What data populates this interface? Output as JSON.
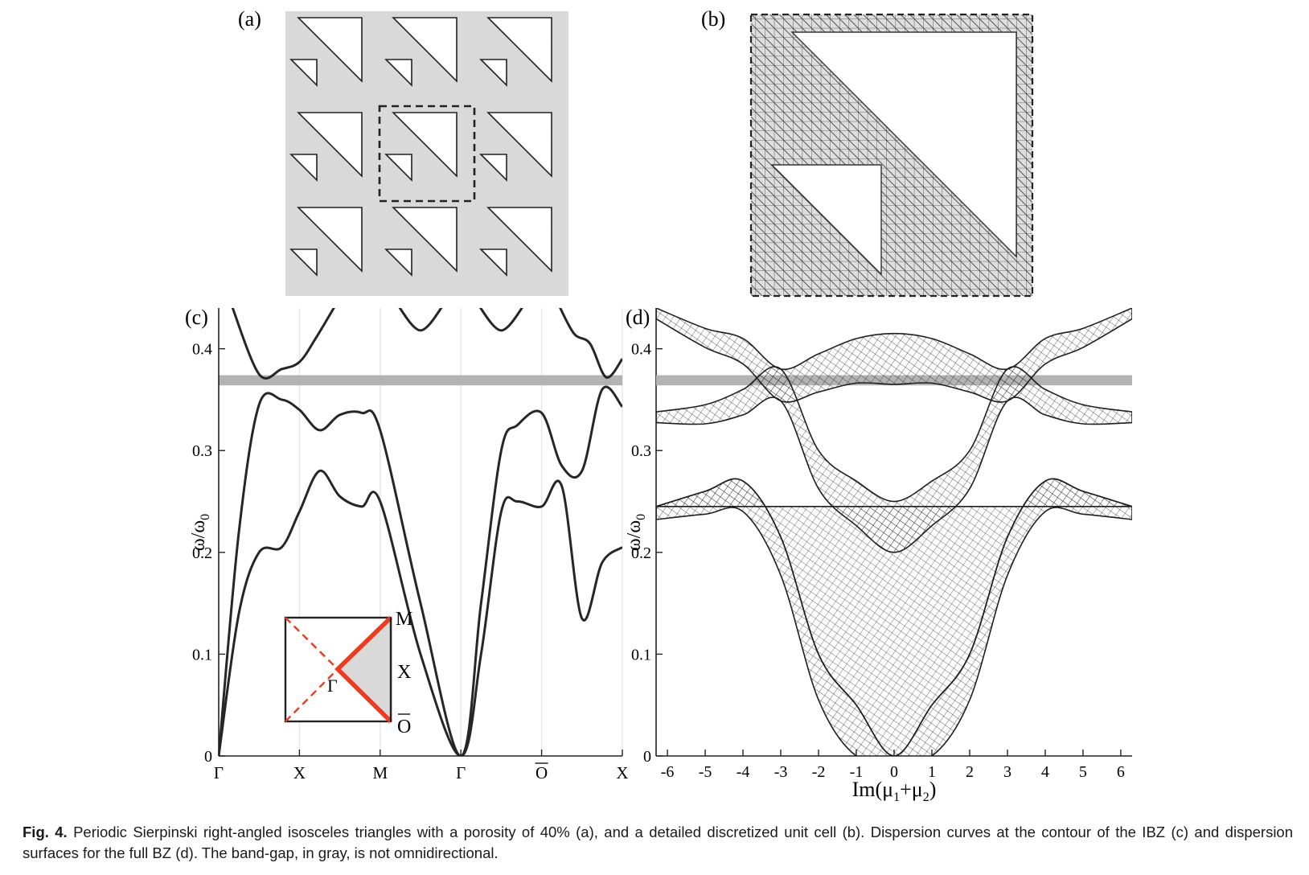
{
  "panels": {
    "a": {
      "label": "(a)"
    },
    "b": {
      "label": "(b)"
    },
    "c": {
      "label": "(c)"
    },
    "d": {
      "label": "(d)"
    }
  },
  "colors": {
    "fill_gray": "#d9d9d9",
    "band_gap": "#b3b3b3",
    "curve": "#262626",
    "ibz_path": "#f03a1e"
  },
  "chart_c": {
    "type": "line",
    "y_tick_labels": [
      "0",
      "0.1",
      "0.2",
      "0.3",
      "0.4"
    ],
    "x_tick_labels": [
      "Γ",
      "X",
      "M",
      "Γ",
      "O",
      "X"
    ],
    "ylabel": "ω/ω",
    "ylabel_sub": "0",
    "ylim": [
      0,
      0.44
    ],
    "band_gap": [
      0.364,
      0.374
    ]
  },
  "inset": {
    "labels": {
      "M": "M",
      "X": "X",
      "O": "O",
      "Gamma": "Γ"
    }
  },
  "chart_d": {
    "type": "surface",
    "y_tick_labels": [
      "0",
      "0.1",
      "0.2",
      "0.3",
      "0.4"
    ],
    "x_tick_labels": [
      "-6",
      "-5",
      "-4",
      "-3",
      "-2",
      "-1",
      "0",
      "1",
      "2",
      "3",
      "4",
      "5",
      "6"
    ],
    "xlabel": "Im(μ +μ )",
    "xlabel_parts": {
      "pre": "Im(μ",
      "sub1": "1",
      "mid": "+μ",
      "sub2": "2",
      "post": ")"
    },
    "ylabel": "ω/ω",
    "ylabel_sub": "0",
    "xlim": [
      -6.3,
      6.3
    ],
    "ylim": [
      0,
      0.44
    ]
  },
  "chart_data": [
    {
      "type": "line",
      "title": "",
      "ylabel": "ω/ω0",
      "ylim": [
        0,
        0.44
      ],
      "categories": [
        "Γ",
        "X",
        "M",
        "Γ",
        "O",
        "X"
      ],
      "band_gap": [
        0.364,
        0.374
      ],
      "series": [
        {
          "x": [
            0,
            0.25,
            0.5,
            0.78,
            1,
            1.25,
            1.5,
            1.77,
            2.0,
            2.5,
            3,
            3.25,
            3.5,
            3.7,
            4,
            4.25,
            4.5,
            4.75,
            5
          ],
          "values": [
            0,
            0.14,
            0.2,
            0.205,
            0.24,
            0.28,
            0.255,
            0.245,
            0.25,
            0.1,
            0,
            0.1,
            0.24,
            0.25,
            0.245,
            0.265,
            0.135,
            0.19,
            0.205
          ]
        },
        {
          "x": [
            0,
            0.25,
            0.5,
            0.78,
            1,
            1.25,
            1.5,
            1.77,
            2.0,
            2.5,
            3,
            3.25,
            3.5,
            3.7,
            4,
            4.25,
            4.5,
            4.75,
            5
          ],
          "values": [
            0,
            0.22,
            0.345,
            0.35,
            0.34,
            0.32,
            0.335,
            0.337,
            0.32,
            0.15,
            0,
            0.15,
            0.3,
            0.325,
            0.337,
            0.285,
            0.28,
            0.36,
            0.343
          ]
        },
        {
          "x": [
            0.15,
            0.5,
            0.78,
            1,
            1.2,
            1.5
          ],
          "values": [
            0.445,
            0.375,
            0.38,
            0.387,
            0.41,
            0.45
          ]
        },
        {
          "x": [
            2.2,
            2.5,
            2.8
          ],
          "values": [
            0.445,
            0.418,
            0.445
          ]
        },
        {
          "x": [
            3.2,
            3.5,
            3.8
          ],
          "values": [
            0.445,
            0.418,
            0.445
          ]
        },
        {
          "x": [
            4.2,
            4.4,
            4.6,
            4.8,
            5
          ],
          "values": [
            0.445,
            0.415,
            0.405,
            0.372,
            0.39
          ]
        }
      ]
    },
    {
      "type": "surface",
      "title": "",
      "xlabel": "Im(μ1+μ2)",
      "ylabel": "ω/ω0",
      "xlim": [
        -6.3,
        6.3
      ],
      "ylim": [
        0,
        0.44
      ],
      "band_gap": [
        0.364,
        0.374
      ],
      "series": [
        {
          "name": "",
          "x": [
            -6.3,
            -5,
            -4,
            -3,
            -2,
            -1,
            0,
            1,
            2,
            3,
            4,
            5,
            6.3
          ],
          "values": [
            0.245,
            0.26,
            0.27,
            0.215,
            0.1,
            0.05,
            0,
            0.05,
            0.1,
            0.215,
            0.27,
            0.26,
            0.245
          ]
        },
        {
          "name": "",
          "x": [
            -6.3,
            -5,
            -4,
            -3,
            -2,
            -1,
            0,
            1,
            2,
            3,
            4,
            5,
            6.3
          ],
          "values": [
            0.338,
            0.345,
            0.36,
            0.38,
            0.3,
            0.27,
            0.25,
            0.27,
            0.3,
            0.38,
            0.36,
            0.345,
            0.338
          ]
        },
        {
          "name": "",
          "x": [
            -6.3,
            -5,
            -4,
            -3,
            -2,
            -1,
            0,
            1,
            2,
            3,
            4,
            5,
            6.3
          ],
          "values": [
            0.44,
            0.42,
            0.41,
            0.38,
            0.395,
            0.41,
            0.415,
            0.41,
            0.395,
            0.38,
            0.41,
            0.42,
            0.44
          ]
        }
      ]
    }
  ],
  "caption": {
    "label": "Fig. 4.",
    "text": "Periodic Sierpinski right-angled isosceles triangles with a porosity of 40% (a), and a detailed discretized unit cell (b). Dispersion curves at the contour of the IBZ (c) and dispersion surfaces for the full BZ (d). The band-gap, in gray, is not omnidirectional."
  }
}
